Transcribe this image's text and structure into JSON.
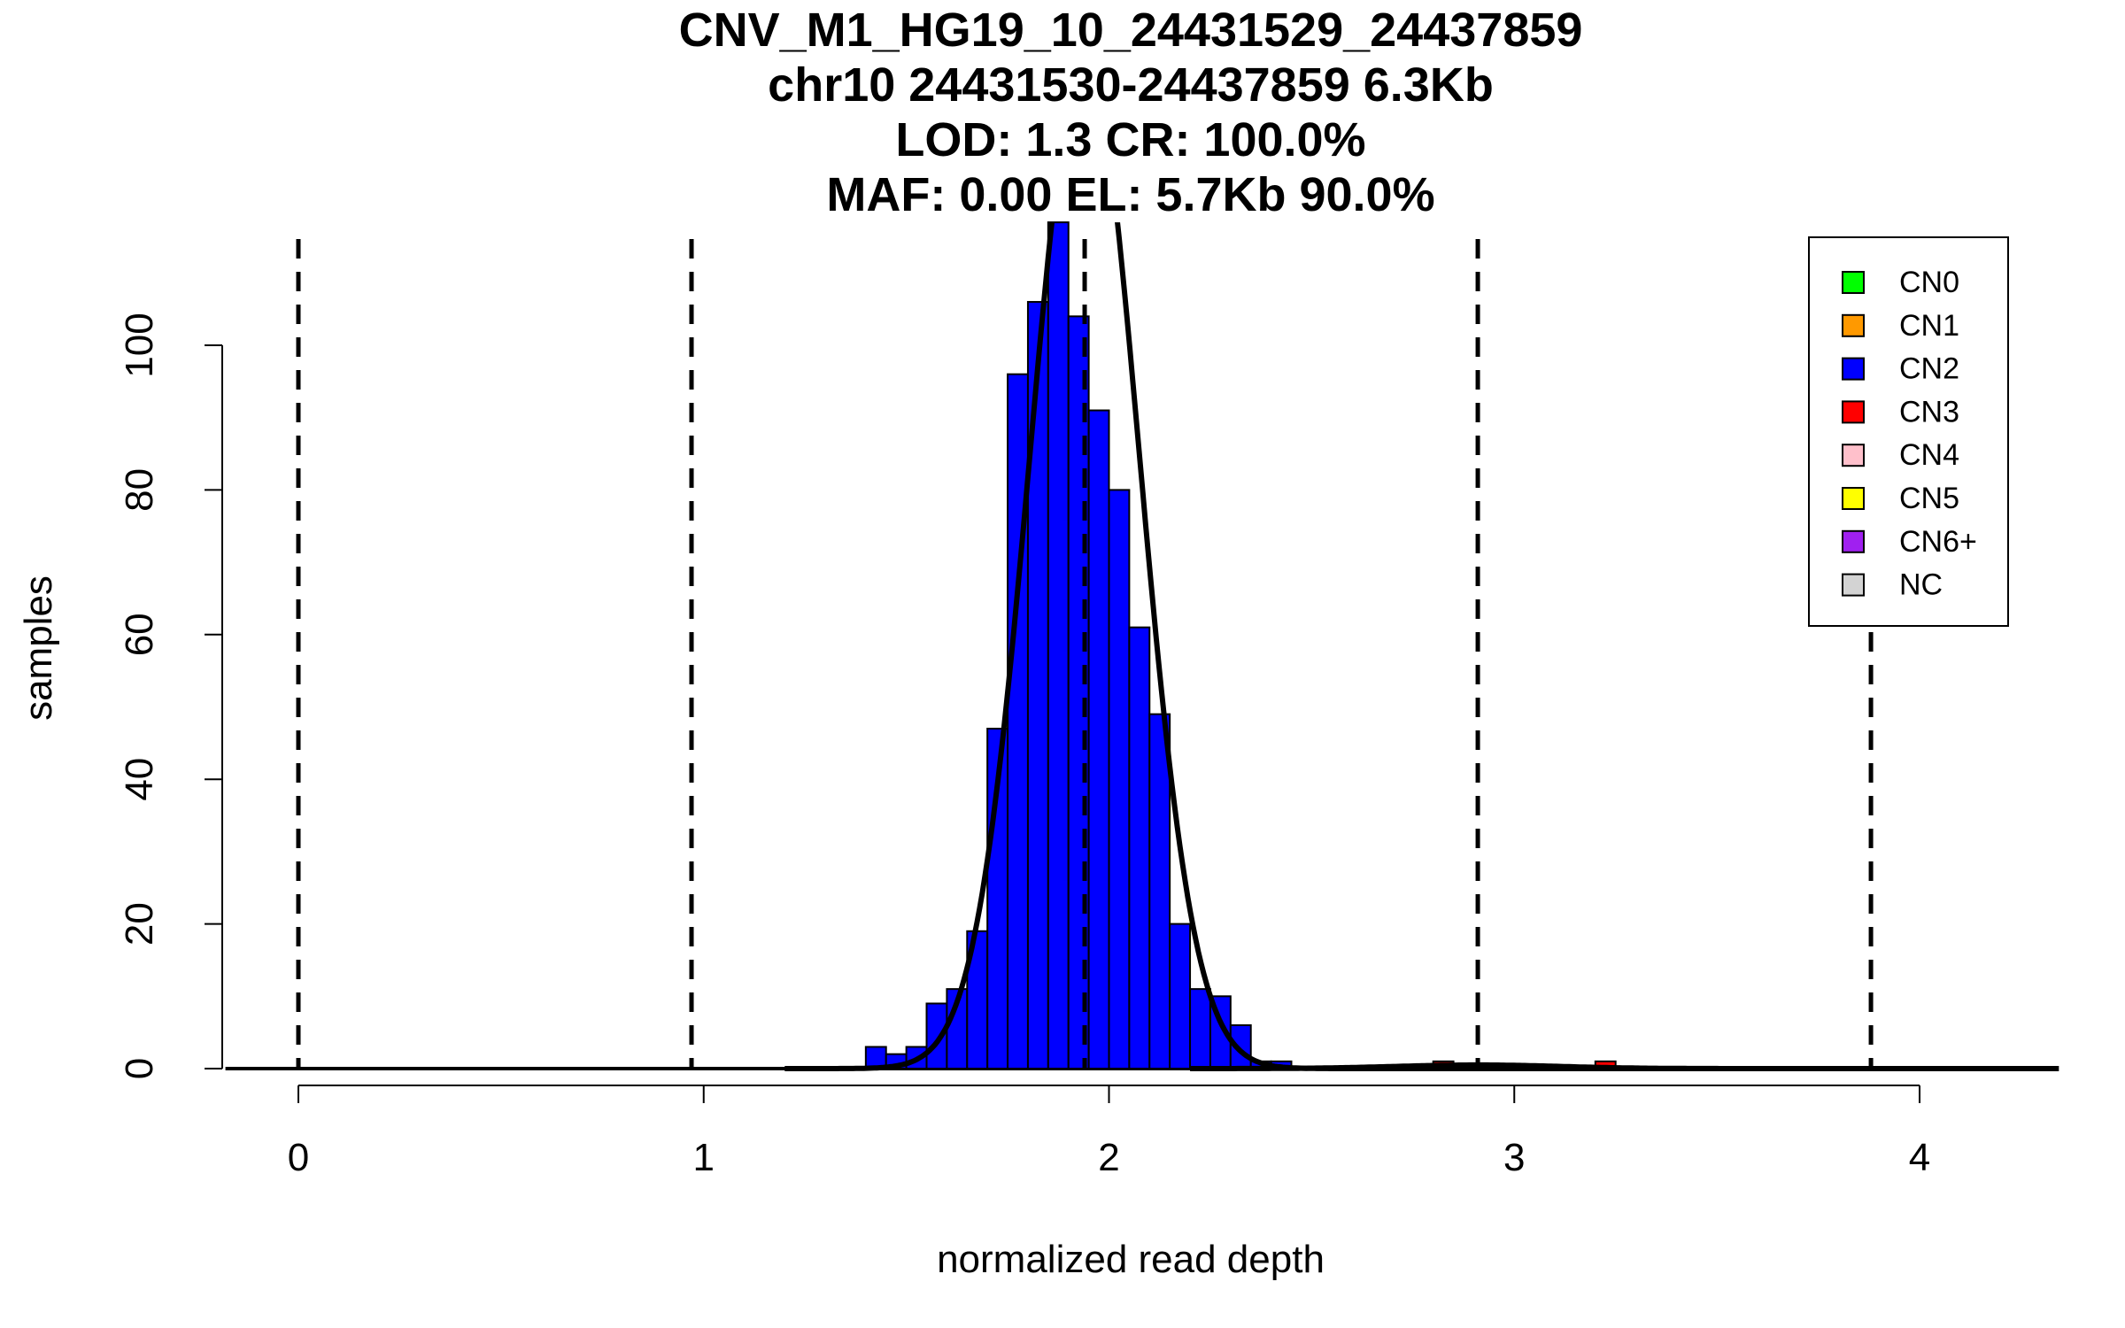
{
  "chart_data": {
    "type": "bar",
    "title_lines": [
      "CNV_M1_HG19_10_24431529_24437859",
      "chr10 24431530-24437859 6.3Kb",
      "LOD: 1.3 CR: 100.0%",
      "MAF: 0.00 EL: 5.7Kb 90.0%"
    ],
    "xlabel": "normalized read depth",
    "ylabel": "samples",
    "xlim": [
      -0.18,
      4.3
    ],
    "ylim": [
      0,
      117
    ],
    "x_ticks": [
      0,
      1,
      2,
      3,
      4
    ],
    "x_tick_labels": [
      "0",
      "1",
      "2",
      "3",
      "4"
    ],
    "y_ticks": [
      0,
      20,
      40,
      60,
      80,
      100
    ],
    "y_tick_labels": [
      "0",
      "20",
      "40",
      "60",
      "80",
      "100"
    ],
    "bin_width": 0.05,
    "series": [
      {
        "name": "CN2",
        "color": "#0000ff",
        "bars": [
          {
            "x": 1.425,
            "value": 3
          },
          {
            "x": 1.475,
            "value": 2
          },
          {
            "x": 1.525,
            "value": 3
          },
          {
            "x": 1.575,
            "value": 9
          },
          {
            "x": 1.625,
            "value": 11
          },
          {
            "x": 1.675,
            "value": 19
          },
          {
            "x": 1.725,
            "value": 47
          },
          {
            "x": 1.775,
            "value": 96
          },
          {
            "x": 1.825,
            "value": 106
          },
          {
            "x": 1.875,
            "value": 117
          },
          {
            "x": 1.925,
            "value": 104
          },
          {
            "x": 1.975,
            "value": 91
          },
          {
            "x": 2.025,
            "value": 80
          },
          {
            "x": 2.075,
            "value": 61
          },
          {
            "x": 2.125,
            "value": 49
          },
          {
            "x": 2.175,
            "value": 20
          },
          {
            "x": 2.225,
            "value": 11
          },
          {
            "x": 2.275,
            "value": 10
          },
          {
            "x": 2.325,
            "value": 6
          },
          {
            "x": 2.375,
            "value": 1
          },
          {
            "x": 2.425,
            "value": 1
          }
        ]
      },
      {
        "name": "CN3",
        "color": "#ff0000",
        "bars": [
          {
            "x": 2.825,
            "value": 1
          },
          {
            "x": 3.225,
            "value": 1
          }
        ]
      }
    ],
    "cn_thresholds": [
      0.0,
      0.97,
      1.94,
      2.91,
      3.88
    ],
    "fit_curves": [
      {
        "mean": 1.94,
        "sd": 0.135,
        "peak": 140
      },
      {
        "mean": 2.91,
        "sd": 0.2,
        "peak": 0.5
      }
    ],
    "legend": {
      "position": "top-right",
      "entries": [
        {
          "label": "CN0",
          "color": "#00ff00"
        },
        {
          "label": "CN1",
          "color": "#ff9900"
        },
        {
          "label": "CN2",
          "color": "#0000ff"
        },
        {
          "label": "CN3",
          "color": "#ff0000"
        },
        {
          "label": "CN4",
          "color": "#ffc0cb"
        },
        {
          "label": "CN5",
          "color": "#ffff00"
        },
        {
          "label": "CN6+",
          "color": "#a020f0"
        },
        {
          "label": "NC",
          "color": "#d3d3d3"
        }
      ]
    }
  }
}
